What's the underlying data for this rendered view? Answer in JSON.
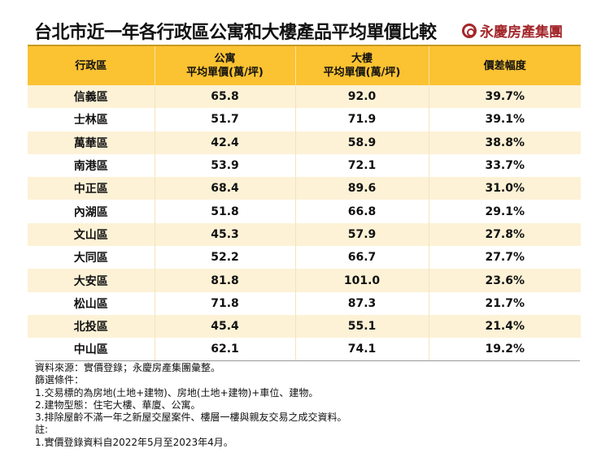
{
  "title": "台北市近一年各行政區公寓和大樓產品平均單價比較",
  "logo": "永慶房產集團",
  "headers": [
    {
      "l1": "行政區",
      "l2": ""
    },
    {
      "l1": "公寓",
      "l2": "平均單價(萬/坪)"
    },
    {
      "l1": "大樓",
      "l2": "平均單價(萬/坪)"
    },
    {
      "l1": "價差幅度",
      "l2": ""
    }
  ],
  "rows": [
    [
      "信義區",
      "65.8",
      "92.0",
      "39.7%"
    ],
    [
      "士林區",
      "51.7",
      "71.9",
      "39.1%"
    ],
    [
      "萬華區",
      "42.4",
      "58.9",
      "38.8%"
    ],
    [
      "南港區",
      "53.9",
      "72.1",
      "33.7%"
    ],
    [
      "中正區",
      "68.4",
      "89.6",
      "31.0%"
    ],
    [
      "內湖區",
      "51.8",
      "66.8",
      "29.1%"
    ],
    [
      "文山區",
      "45.3",
      "57.9",
      "27.8%"
    ],
    [
      "大同區",
      "52.2",
      "66.7",
      "27.7%"
    ],
    [
      "大安區",
      "81.8",
      "101.0",
      "23.6%"
    ],
    [
      "松山區",
      "71.8",
      "87.3",
      "21.7%"
    ],
    [
      "北投區",
      "45.4",
      "55.1",
      "21.4%"
    ],
    [
      "中山區",
      "62.1",
      "74.1",
      "19.2%"
    ]
  ],
  "notes": [
    "資料來源：實價登錄；永慶房產集團彙整。",
    "篩選條件：",
    "1.交易標的為房地(土地+建物)、房地(土地+建物)+車位、建物。",
    "2.建物型態：住宅大樓、華廈、公寓。",
    "3.排除屋齡不滿一年之新屋交屋案件、樓層一樓與親友交易之成交資料。",
    "註:",
    "1.實價登錄資料自2022年5月至2023年4月。"
  ]
}
